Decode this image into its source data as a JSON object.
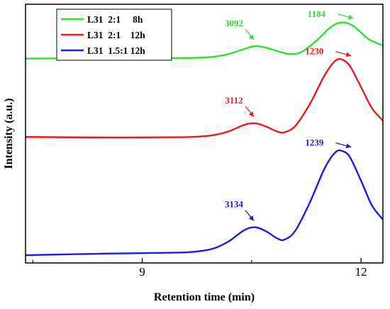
{
  "chart_data": {
    "type": "line",
    "xlabel": "Retention time (min)",
    "ylabel": "Intensity (a.u.)",
    "xlim": [
      7.4,
      12.3
    ],
    "ylim": [
      0,
      1
    ],
    "x_ticks": [
      9,
      12
    ],
    "grid": false,
    "y_tick_labels": false,
    "legend_position": "top-left",
    "series": [
      {
        "name": "L31  2:1     8h",
        "color": "#2ee02e",
        "points": [
          [
            7.4,
            0.79
          ],
          [
            8.5,
            0.792
          ],
          [
            9.5,
            0.792
          ],
          [
            9.9,
            0.795
          ],
          [
            10.15,
            0.805
          ],
          [
            10.4,
            0.827
          ],
          [
            10.55,
            0.838
          ],
          [
            10.7,
            0.832
          ],
          [
            10.9,
            0.815
          ],
          [
            11.05,
            0.807
          ],
          [
            11.2,
            0.818
          ],
          [
            11.4,
            0.862
          ],
          [
            11.6,
            0.915
          ],
          [
            11.75,
            0.93
          ],
          [
            11.9,
            0.915
          ],
          [
            12.1,
            0.866
          ],
          [
            12.3,
            0.84
          ]
        ],
        "peaks": [
          {
            "label": "3092",
            "x": 10.55
          },
          {
            "label": "1184",
            "x": 11.76
          }
        ]
      },
      {
        "name": "L31  2:1    12h",
        "color": "#e81a1a",
        "points": [
          [
            7.4,
            0.487
          ],
          [
            8.5,
            0.485
          ],
          [
            9.5,
            0.486
          ],
          [
            9.8,
            0.489
          ],
          [
            10.0,
            0.495
          ],
          [
            10.2,
            0.51
          ],
          [
            10.4,
            0.534
          ],
          [
            10.55,
            0.54
          ],
          [
            10.7,
            0.527
          ],
          [
            10.85,
            0.508
          ],
          [
            10.95,
            0.505
          ],
          [
            11.1,
            0.53
          ],
          [
            11.3,
            0.615
          ],
          [
            11.5,
            0.725
          ],
          [
            11.65,
            0.782
          ],
          [
            11.75,
            0.785
          ],
          [
            11.85,
            0.76
          ],
          [
            12.0,
            0.68
          ],
          [
            12.15,
            0.598
          ],
          [
            12.3,
            0.55
          ]
        ],
        "peaks": [
          {
            "label": "3112",
            "x": 10.55
          },
          {
            "label": "1230",
            "x": 11.73
          }
        ]
      },
      {
        "name": "L31  1.5:1 12h",
        "color": "#1a1aee",
        "points": [
          [
            7.4,
            0.03
          ],
          [
            8.5,
            0.036
          ],
          [
            9.5,
            0.04
          ],
          [
            9.8,
            0.046
          ],
          [
            10.0,
            0.058
          ],
          [
            10.2,
            0.086
          ],
          [
            10.4,
            0.127
          ],
          [
            10.55,
            0.138
          ],
          [
            10.7,
            0.122
          ],
          [
            10.85,
            0.095
          ],
          [
            10.95,
            0.09
          ],
          [
            11.1,
            0.125
          ],
          [
            11.3,
            0.235
          ],
          [
            11.5,
            0.365
          ],
          [
            11.65,
            0.428
          ],
          [
            11.75,
            0.432
          ],
          [
            11.85,
            0.408
          ],
          [
            12.0,
            0.318
          ],
          [
            12.15,
            0.222
          ],
          [
            12.3,
            0.168
          ]
        ],
        "peaks": [
          {
            "label": "3134",
            "x": 10.55
          },
          {
            "label": "1239",
            "x": 11.73
          }
        ]
      }
    ]
  }
}
